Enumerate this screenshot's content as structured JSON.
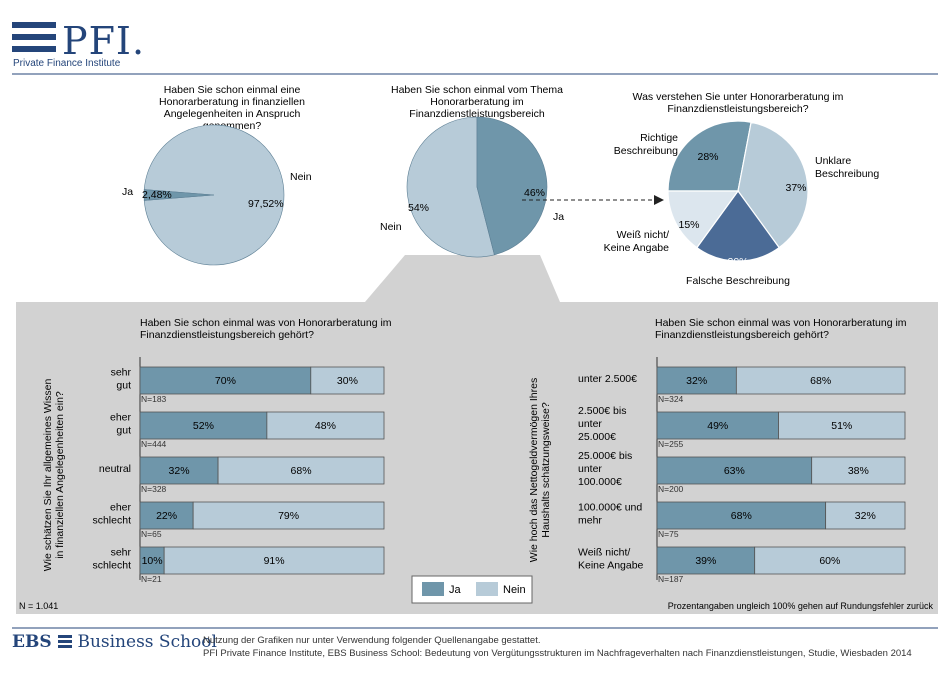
{
  "header": {
    "logo_text": "PFI.",
    "logo_subtitle": "Private Finance Institute"
  },
  "colors": {
    "ja": "#6f96aa",
    "nein": "#b7cbd8",
    "falsch": "#4b6b96",
    "weiss_nicht": "#dce6ee",
    "panel_bg": "#cfcfcf"
  },
  "chart_data": [
    {
      "type": "pie",
      "title": "Haben Sie schon einmal eine Honorarberatung in finanziellen Angelegenheiten in Anspruch genommen?",
      "slices": [
        {
          "label": "Ja",
          "value": 2.48,
          "value_label": "2,48%"
        },
        {
          "label": "Nein",
          "value": 97.52,
          "value_label": "97,52%"
        }
      ]
    },
    {
      "type": "pie",
      "title": "Haben Sie schon einmal vom Thema Honorarberatung im Finanzdienstleistungsbereich gehört?",
      "slices": [
        {
          "label": "Ja",
          "value": 46,
          "value_label": "46%"
        },
        {
          "label": "Nein",
          "value": 54,
          "value_label": "54%"
        }
      ]
    },
    {
      "type": "pie",
      "title": "Was verstehen Sie unter Honorarberatung im Finanzdienstleistungsbereich?",
      "slices": [
        {
          "label": "Richtige Beschreibung",
          "value": 28,
          "value_label": "28%"
        },
        {
          "label": "Unklare Beschreibung",
          "value": 37,
          "value_label": "37%"
        },
        {
          "label": "Falsche Beschreibung",
          "value": 20,
          "value_label": "20%"
        },
        {
          "label": "Weiß nicht/ Keine Angabe",
          "value": 15,
          "value_label": "15%"
        }
      ]
    },
    {
      "type": "bar",
      "title": "Haben Sie schon einmal was von Honorarberatung im Finanzdienstleistungsbereich gehört?",
      "ylabel": "Wie schätzen Sie Ihr allgemeines Wissen in finanziellen Angelegenheiten ein?",
      "categories": [
        "sehr gut",
        "eher gut",
        "neutral",
        "eher schlecht",
        "sehr schlecht"
      ],
      "n": [
        "N=183",
        "N=444",
        "N=328",
        "N=65",
        "N=21"
      ],
      "series": [
        {
          "name": "Ja",
          "values": [
            70,
            52,
            32,
            22,
            10
          ],
          "labels": [
            "70%",
            "52%",
            "32%",
            "22%",
            "10%"
          ]
        },
        {
          "name": "Nein",
          "values": [
            30,
            48,
            68,
            79,
            91
          ],
          "labels": [
            "30%",
            "48%",
            "68%",
            "79%",
            "91%"
          ]
        }
      ]
    },
    {
      "type": "bar",
      "title": "Haben Sie schon einmal was von Honorarberatung im Finanzdienstleistungsbereich gehört?",
      "ylabel": "Wie hoch das Nettogeldvermögen Ihres Haushalts schätzungsweise?",
      "categories": [
        "unter 2.500€",
        "2.500€ bis unter 25.000€",
        "25.000€ bis unter 100.000€",
        "100.000€ und mehr",
        "Weiß nicht/ Keine Angabe"
      ],
      "n": [
        "N=324",
        "N=255",
        "N=200",
        "N=75",
        "N=187"
      ],
      "series": [
        {
          "name": "Ja",
          "values": [
            32,
            49,
            63,
            68,
            39
          ],
          "labels": [
            "32%",
            "49%",
            "63%",
            "68%",
            "39%"
          ]
        },
        {
          "name": "Nein",
          "values": [
            68,
            51,
            38,
            32,
            60
          ],
          "labels": [
            "68%",
            "51%",
            "38%",
            "32%",
            "60%"
          ]
        }
      ]
    }
  ],
  "legend": {
    "ja": "Ja",
    "nein": "Nein"
  },
  "notes": {
    "n_total": "N = 1.041",
    "rounding": "Prozentangaben ungleich 100% gehen auf Rundungsfehler zurück"
  },
  "footer": {
    "ebs_logo_bold": "EBS",
    "ebs_logo_rest": "Business School",
    "line1": "Nutzung der Grafiken nur unter Verwendung folgender Quellenangabe gestattet.",
    "line2": "PFI Private Finance Institute, EBS Business School: Bedeutung von Vergütungsstrukturen im Nachfrageverhalten nach Finanzdienstleistungen, Studie, Wiesbaden 2014"
  }
}
